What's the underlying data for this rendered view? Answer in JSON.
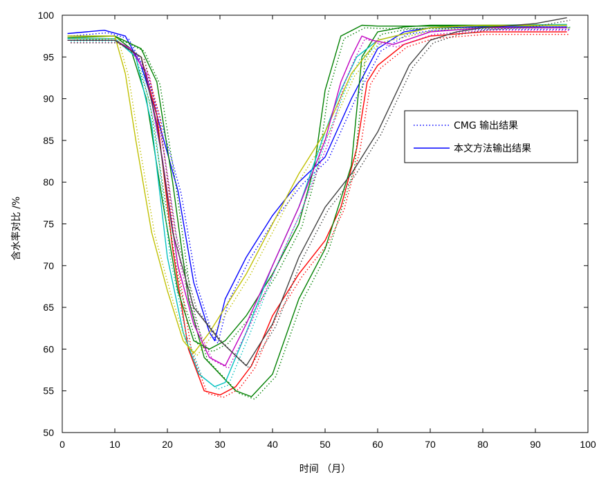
{
  "chart_data": {
    "type": "line",
    "title": "",
    "xlabel": "时间 （月）",
    "ylabel": "含水率对比 /%",
    "xlim": [
      0,
      100
    ],
    "ylim": [
      50,
      100
    ],
    "xticks": [
      "0",
      "10",
      "20",
      "30",
      "40",
      "50",
      "60",
      "70",
      "80",
      "90",
      "100"
    ],
    "yticks": [
      "50",
      "55",
      "60",
      "65",
      "70",
      "75",
      "80",
      "85",
      "90",
      "95",
      "100"
    ],
    "grid": false,
    "legend_position": "right",
    "legend": [
      {
        "label": "CMG 输出结果",
        "style": "dotted",
        "color": "#0000ff"
      },
      {
        "label": "本文方法输出结果",
        "style": "solid",
        "color": "#0000ff"
      }
    ],
    "series": [
      {
        "color": "#0000ff",
        "x": [
          1,
          8,
          12,
          15,
          18,
          22,
          25,
          28,
          29,
          31,
          35,
          40,
          45,
          50,
          55,
          60,
          65,
          70,
          80,
          96
        ],
        "y": [
          97.8,
          98.2,
          97.5,
          94,
          88,
          79,
          68,
          62,
          61,
          66,
          71,
          76,
          80,
          83,
          90,
          96,
          98,
          98.5,
          98.6,
          98.6
        ]
      },
      {
        "color": "#ff0000",
        "x": [
          1,
          10,
          15,
          18,
          21,
          24,
          27,
          30,
          33,
          36,
          40,
          45,
          50,
          53,
          56,
          58,
          60,
          65,
          70,
          80,
          96
        ],
        "y": [
          97,
          97,
          95,
          88,
          72,
          60,
          55,
          54.5,
          55.5,
          58,
          64,
          69,
          73,
          77,
          84,
          92,
          94,
          96.5,
          97.5,
          98,
          98
        ]
      },
      {
        "color": "#008000",
        "x": [
          1,
          10,
          15,
          18,
          21,
          24,
          27,
          30,
          33,
          36,
          40,
          45,
          50,
          55,
          57,
          60,
          65,
          70,
          80,
          96
        ],
        "y": [
          97.3,
          97.5,
          96,
          92,
          80,
          66,
          59,
          57,
          55,
          54.3,
          57,
          66,
          72,
          82,
          95,
          98,
          98.6,
          98.8,
          98.8,
          98.8
        ]
      },
      {
        "color": "#008000",
        "x": [
          1,
          10,
          13,
          16,
          19,
          22,
          25,
          28,
          31,
          35,
          40,
          45,
          48,
          50,
          53,
          57,
          60,
          70,
          80,
          96
        ],
        "y": [
          97.5,
          97.5,
          96,
          90,
          78,
          67,
          61,
          60,
          61,
          64,
          69,
          75,
          82,
          91,
          97.5,
          98.8,
          98.7,
          98.7,
          98.7,
          98.8
        ]
      },
      {
        "color": "#00c0c0",
        "x": [
          1,
          10,
          14,
          17,
          20,
          23,
          26,
          29,
          31,
          35,
          40,
          45,
          50,
          53,
          56,
          60,
          70,
          80,
          96
        ],
        "y": [
          97.2,
          97.2,
          95,
          87,
          71,
          62,
          57,
          55.5,
          56,
          62,
          70,
          77,
          86,
          91,
          95,
          97,
          98.5,
          98.8,
          98.9
        ]
      },
      {
        "color": "#c0c000",
        "x": [
          1,
          10,
          12,
          14,
          17,
          20,
          23,
          25,
          28,
          31,
          35,
          40,
          45,
          50,
          55,
          60,
          70,
          80,
          96
        ],
        "y": [
          97.5,
          97.5,
          93,
          85,
          74,
          67,
          61,
          59.5,
          62,
          65,
          69,
          75,
          81,
          86,
          93,
          97,
          98.5,
          98.8,
          98.8
        ]
      },
      {
        "color": "#c000c0",
        "x": [
          1,
          10,
          13,
          16,
          19,
          22,
          25,
          28,
          31,
          35,
          40,
          45,
          50,
          53,
          55,
          57,
          59,
          63,
          70,
          80,
          96
        ],
        "y": [
          97,
          97,
          96,
          93,
          83,
          70,
          63,
          59,
          58,
          63,
          70,
          77,
          85,
          92,
          95,
          97.5,
          97,
          96.5,
          98,
          98.5,
          98.5
        ]
      },
      {
        "color": "#404040",
        "x": [
          1,
          10,
          15,
          18,
          21,
          25,
          30,
          35,
          40,
          45,
          50,
          55,
          60,
          63,
          66,
          70,
          75,
          80,
          90,
          96
        ],
        "y": [
          97,
          97,
          95,
          87,
          74,
          65,
          61,
          58,
          63,
          71,
          77,
          81,
          86,
          90,
          94,
          97,
          98,
          98.5,
          99,
          99.7
        ]
      }
    ]
  }
}
